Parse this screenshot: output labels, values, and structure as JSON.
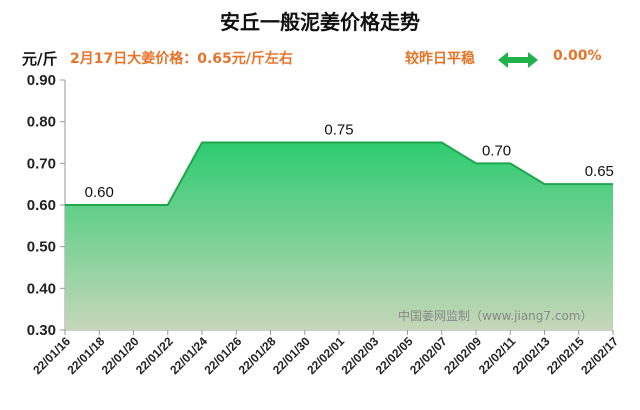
{
  "header": {
    "title": "安丘一般泥姜价格走势",
    "unit": "元/斤",
    "info": "2月17日大姜价格：0.65元/斤左右",
    "trend": "较昨日平稳",
    "trend_icon": "double-arrow-icon",
    "change": "0.00%"
  },
  "colors": {
    "accent": "#e8742a",
    "area_top": "#2ecc71",
    "area_bottom": "#c5d7b9",
    "line": "#1fa64d",
    "arrow": "#22b24c"
  },
  "watermark": "中国姜网监制（www.jiang7.com）",
  "chart_data": {
    "type": "area",
    "title": "安丘一般泥姜价格走势",
    "ylabel": "元/斤",
    "xlabel": "",
    "ylim": [
      0.3,
      0.9
    ],
    "yticks": [
      "0.30",
      "0.40",
      "0.50",
      "0.60",
      "0.70",
      "0.80",
      "0.90"
    ],
    "x": [
      "22/01/16",
      "22/01/18",
      "22/01/20",
      "22/01/22",
      "22/01/24",
      "22/01/26",
      "22/01/28",
      "22/01/30",
      "22/02/01",
      "22/02/03",
      "22/02/05",
      "22/02/07",
      "22/02/09",
      "22/02/11",
      "22/02/13",
      "22/02/15",
      "22/02/17"
    ],
    "values": [
      0.6,
      0.6,
      0.6,
      0.6,
      0.75,
      0.75,
      0.75,
      0.75,
      0.75,
      0.75,
      0.75,
      0.75,
      0.7,
      0.7,
      0.65,
      0.65,
      0.65
    ],
    "data_labels": [
      {
        "index": 1,
        "text": "0.60"
      },
      {
        "index": 8,
        "text": "0.75"
      },
      {
        "index": 12.6,
        "text": "0.70"
      },
      {
        "index": 15.6,
        "text": "0.65"
      }
    ],
    "grid": false
  }
}
